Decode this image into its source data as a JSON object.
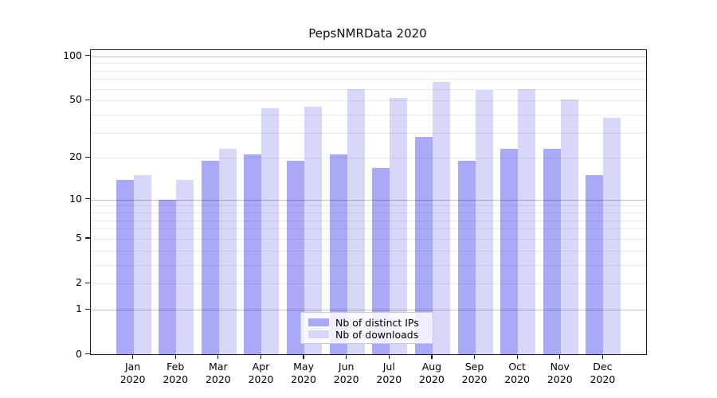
{
  "chart_data": {
    "type": "bar",
    "title": "PepsNMRData 2020",
    "x_months": [
      "Jan",
      "Feb",
      "Mar",
      "Apr",
      "May",
      "Jun",
      "Jul",
      "Aug",
      "Sep",
      "Oct",
      "Nov",
      "Dec"
    ],
    "x_year": "2020",
    "series": [
      {
        "name": "Nb of distinct IPs",
        "color": "#a9a9f8",
        "values": [
          14,
          10,
          19,
          21,
          19,
          21,
          17,
          28,
          19,
          23,
          23,
          15
        ]
      },
      {
        "name": "Nb of downloads",
        "color": "#d7d7fa",
        "values": [
          15,
          14,
          23,
          44,
          45,
          60,
          52,
          67,
          59,
          60,
          51,
          38
        ]
      }
    ],
    "y_scale": "log(1+x)",
    "ylim": [
      0,
      110
    ],
    "y_tick_values": [
      100,
      50,
      20,
      10,
      5,
      2,
      1,
      0
    ],
    "y_tick_labels": [
      "100",
      "50",
      "20",
      "10",
      "5",
      "2",
      "1",
      "0"
    ],
    "grid": "horizontal",
    "grid_major_values": [
      1,
      10,
      100
    ],
    "grid_minor_values": [
      2,
      3,
      4,
      5,
      6,
      7,
      8,
      9,
      20,
      30,
      40,
      50,
      60,
      70,
      80,
      90
    ],
    "legend": {
      "position": "lower center",
      "entries": [
        "Nb of distinct IPs",
        "Nb of downloads"
      ]
    }
  },
  "colors": {
    "bar_distinct_ips": "#a9a9f8",
    "bar_downloads": "#d7d7fa",
    "axis": "#1a1a1a",
    "legend_border": "#cccccc",
    "background": "#ffffff"
  }
}
